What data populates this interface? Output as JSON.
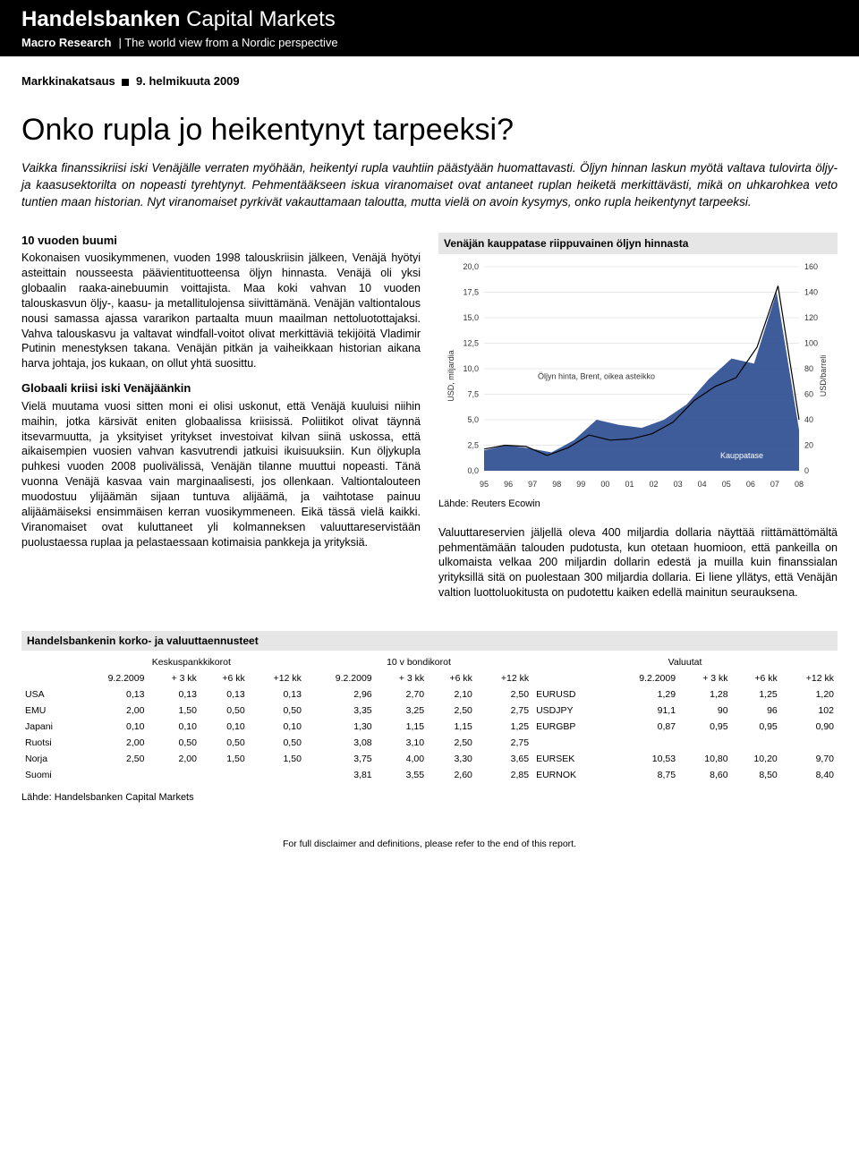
{
  "header": {
    "brand_a": "Handelsbanken",
    "brand_b": "Capital Markets",
    "sub_a": "Macro Research",
    "sub_b": "The world view from a Nordic perspective"
  },
  "dateline_a": "Markkinakatsaus",
  "dateline_b": "9. helmikuuta 2009",
  "title": "Onko rupla jo heikentynyt tarpeeksi?",
  "lead": "Vaikka finanssikriisi iski Venäjälle verraten myöhään, heikentyi rupla vauhtiin päästyään huomattavasti. Öljyn hinnan laskun myötä valtava tulovirta öljy- ja kaasusektorilta on nopeasti tyrehtynyt. Pehmentääkseen iskua viranomaiset ovat antaneet ruplan heiketä merkittävästi, mikä on uhkarohkea veto tuntien maan historian. Nyt viranomaiset pyrkivät vakauttamaan taloutta, mutta vielä on avoin kysymys, onko rupla heikentynyt tarpeeksi.",
  "left": {
    "h1": "10 vuoden buumi",
    "p1": "Kokonaisen vuosikymmenen, vuoden 1998 talouskriisin jälkeen, Venäjä hyötyi asteittain nousseesta päävientituotteensa öljyn hinnasta. Venäjä oli yksi globaalin raaka-ainebuumin voittajista. Maa koki vahvan 10 vuoden talouskasvun öljy-, kaasu- ja metallitulojensa siivittämänä. Venäjän valtiontalous nousi samassa ajassa vararikon partaalta muun maailman nettoluotottajaksi. Vahva talouskasvu ja valtavat windfall-voitot olivat merkittäviä tekijöitä Vladimir Putinin menestyksen takana. Venäjän pitkän ja vaiheikkaan historian aikana harva johtaja, jos kukaan, on ollut yhtä suosittu.",
    "h2": "Globaali kriisi iski Venäjäänkin",
    "p2": "Vielä muutama vuosi sitten moni ei olisi uskonut, että Venäjä kuuluisi niihin maihin, jotka kärsivät eniten globaalissa kriisissä. Poliitikot olivat täynnä itsevarmuutta, ja yksityiset yritykset investoivat kilvan siinä uskossa, että aikaisempien vuosien vahvan kasvutrendi jatkuisi ikuisuuksiin. Kun öljykupla puhkesi vuoden 2008 puolivälissä, Venäjän tilanne muuttui nopeasti. Tänä vuonna Venäjä kasvaa vain marginaalisesti, jos ollenkaan. Valtiontalouteen muodostuu ylijäämän sijaan tuntuva alijäämä, ja vaihtotase painuu alijäämäiseksi ensimmäisen kerran vuosikymmeneen. Eikä tässä vielä kaikki. Viranomaiset ovat kuluttaneet yli kolmanneksen valuuttareservistään puolustaessa ruplaa ja pelastaessaan kotimaisia pankkeja ja yrityksiä."
  },
  "chart": {
    "title": "Venäjän kauppatase riippuvainen öljyn hinnasta",
    "y1_label": "USD, miljardia",
    "y2_label": "USD/barreli",
    "series1_label": "Öljyn hinta, Brent, oikea asteikko",
    "series2_label": "Kauppatase",
    "x_labels": [
      "95",
      "96",
      "97",
      "98",
      "99",
      "00",
      "01",
      "02",
      "03",
      "04",
      "05",
      "06",
      "07",
      "08"
    ],
    "y1_min": 0,
    "y1_max": 20,
    "y1_step": 2.5,
    "y2_min": 0,
    "y2_max": 160,
    "y2_step": 20,
    "colors": {
      "trade": "#2a4a8f",
      "oil": "#000000",
      "grid": "#e8e8e8",
      "axis": "#999999",
      "text": "#333333"
    },
    "oil_price": [
      17,
      20,
      19,
      12,
      18,
      28,
      24,
      25,
      29,
      38,
      55,
      66,
      73,
      97,
      145,
      40
    ],
    "trade_balance": [
      2.0,
      2.5,
      2.2,
      1.8,
      3.0,
      5.0,
      4.5,
      4.2,
      5.0,
      6.5,
      9.0,
      11.0,
      10.5,
      17.5,
      4.0
    ],
    "source": "Lähde: Reuters Ecowin"
  },
  "right": {
    "p1": "Valuuttareservien jäljellä oleva 400 miljardia dollaria näyttää riittämättömältä pehmentämään talouden pudotusta, kun otetaan huomioon, että pankeilla on ulkomaista velkaa 200 miljardin dollarin edestä ja muilla kuin finanssialan yrityksillä sitä on puolestaan 300 miljardia dollaria. Ei liene yllätys, että Venäjän valtion luottoluokitusta on pudotettu kaiken edellä mainitun seurauksena."
  },
  "forecast": {
    "title": "Handelsbankenin korko- ja valuuttaennusteet",
    "group_labels": [
      "Keskuspankkikorot",
      "10 v bondikorot",
      "Valuutat"
    ],
    "col_headers": [
      "9.2.2009",
      "+ 3 kk",
      "+6 kk",
      "+12 kk",
      "9.2.2009",
      "+ 3 kk",
      "+6 kk",
      "+12 kk",
      "",
      "9.2.2009",
      "+ 3 kk",
      "+6 kk",
      "+12 kk"
    ],
    "rows": [
      {
        "lbl": "USA",
        "c": [
          "0,13",
          "0,13",
          "0,13",
          "0,13",
          "2,96",
          "2,70",
          "2,10",
          "2,50",
          "EURUSD",
          "1,29",
          "1,28",
          "1,25",
          "1,20"
        ]
      },
      {
        "lbl": "EMU",
        "c": [
          "2,00",
          "1,50",
          "0,50",
          "0,50",
          "3,35",
          "3,25",
          "2,50",
          "2,75",
          "USDJPY",
          "91,1",
          "90",
          "96",
          "102"
        ]
      },
      {
        "lbl": "Japani",
        "c": [
          "0,10",
          "0,10",
          "0,10",
          "0,10",
          "1,30",
          "1,15",
          "1,15",
          "1,25",
          "EURGBP",
          "0,87",
          "0,95",
          "0,95",
          "0,90"
        ]
      },
      {
        "lbl": "Ruotsi",
        "c": [
          "2,00",
          "0,50",
          "0,50",
          "0,50",
          "3,08",
          "3,10",
          "2,50",
          "2,75",
          "",
          "",
          "",
          "",
          ""
        ]
      },
      {
        "lbl": "Norja",
        "c": [
          "2,50",
          "2,00",
          "1,50",
          "1,50",
          "3,75",
          "4,00",
          "3,30",
          "3,65",
          "EURSEK",
          "10,53",
          "10,80",
          "10,20",
          "9,70"
        ]
      },
      {
        "lbl": "Suomi",
        "c": [
          "",
          "",
          "",
          "",
          "3,81",
          "3,55",
          "2,60",
          "2,85",
          "EURNOK",
          "8,75",
          "8,60",
          "8,50",
          "8,40"
        ]
      }
    ],
    "source": "Lähde: Handelsbanken Capital Markets"
  },
  "footer": "For full disclaimer and definitions, please refer to the end of this report."
}
